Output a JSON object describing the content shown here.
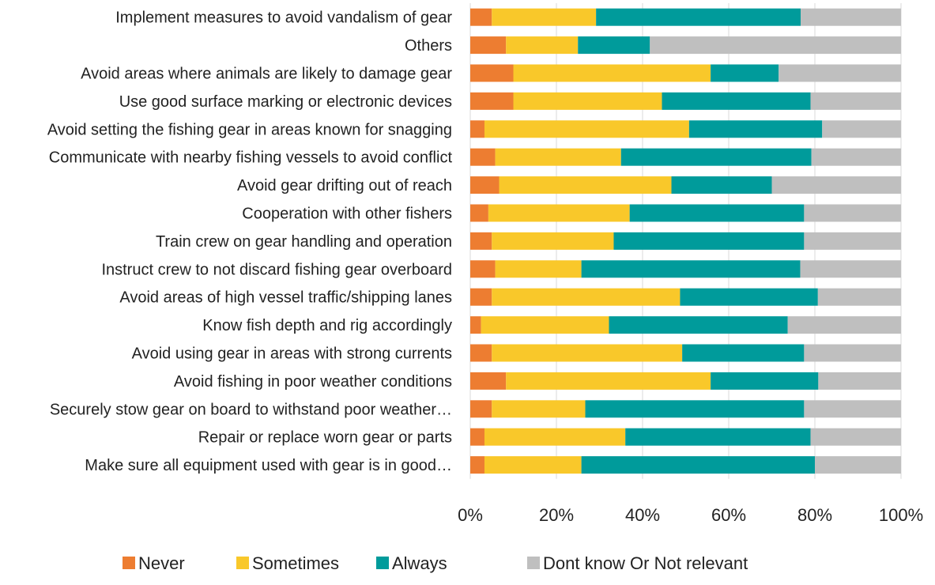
{
  "chart_data": {
    "type": "bar",
    "orientation": "horizontal",
    "stacked": "percent",
    "title": "",
    "xlabel": "",
    "ylabel": "",
    "xlim": [
      0,
      100
    ],
    "x_ticks": [
      "0%",
      "20%",
      "40%",
      "60%",
      "80%",
      "100%"
    ],
    "grid": true,
    "legend_position": "bottom",
    "categories": [
      "Implement measures to avoid vandalism of gear",
      "Others",
      "Avoid areas where animals are likely to damage gear",
      "Use good surface marking or electronic devices",
      "Avoid setting the fishing gear in areas known for snagging",
      "Communicate with nearby fishing vessels to avoid conflict",
      "Avoid gear drifting out of reach",
      "Cooperation with other fishers",
      "Train crew on gear handling and operation",
      "Instruct crew to not discard fishing gear overboard",
      "Avoid areas of high vessel traffic/shipping lanes",
      "Know fish depth and rig accordingly",
      "Avoid using gear in areas with strong currents",
      "Avoid fishing in poor weather conditions",
      "Securely stow gear on board to withstand poor weather…",
      "Repair or replace worn gear or parts",
      "Make sure all equipment used with gear is in good…"
    ],
    "series": [
      {
        "name": "Never",
        "color": "#ED7D31",
        "values": [
          5,
          8.3,
          10,
          10,
          3.3,
          5.8,
          6.7,
          4.2,
          5,
          5.8,
          5,
          2.5,
          5,
          8.3,
          5,
          3.3,
          3.3
        ]
      },
      {
        "name": "Sometimes",
        "color": "#F9C82A",
        "values": [
          24.2,
          16.7,
          45.8,
          34.5,
          47.5,
          29.2,
          40,
          32.8,
          28.3,
          20,
          43.7,
          29.7,
          44.2,
          47.5,
          21.7,
          32.7,
          22.5
        ]
      },
      {
        "name": "Always",
        "color": "#009B9B",
        "values": [
          47.5,
          16.7,
          15.8,
          34.5,
          30.9,
          44.2,
          23.3,
          40.5,
          44.2,
          50.8,
          32,
          41.5,
          28.3,
          25,
          50.8,
          43,
          54.2
        ]
      },
      {
        "name": "Dont know Or Not relevant",
        "color": "#BFBFBF",
        "values": [
          23.3,
          58.3,
          28.4,
          21,
          18.3,
          20.8,
          30,
          22.5,
          22.5,
          23.4,
          19.3,
          26.3,
          22.5,
          19.2,
          22.5,
          21,
          20
        ]
      }
    ]
  }
}
